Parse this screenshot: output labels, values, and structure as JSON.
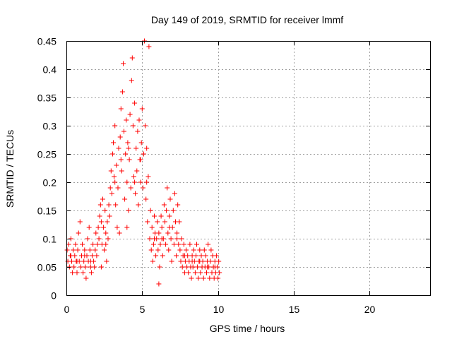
{
  "chart_data": {
    "type": "scatter",
    "title": "Day 149 of 2019, SRMTID for receiver lmmf",
    "xlabel": "GPS time / hours",
    "ylabel": "SRMTID / TECUs",
    "xlim": [
      0,
      24
    ],
    "ylim": [
      0,
      0.45
    ],
    "xticks": [
      0,
      5,
      10,
      15,
      20
    ],
    "xtick_labels": [
      "0",
      "5",
      "10",
      "15",
      "20"
    ],
    "yticks": [
      0,
      0.05,
      0.1,
      0.15,
      0.2,
      0.25,
      0.3,
      0.35,
      0.4,
      0.45
    ],
    "ytick_labels": [
      "0",
      "0.05",
      "0.1",
      "0.15",
      "0.2",
      "0.25",
      "0.3",
      "0.35",
      "0.4",
      "0.45"
    ],
    "grid": true,
    "marker": "plus",
    "color": "#ff0000",
    "series": [
      {
        "name": "SRMTID",
        "points": [
          [
            0.05,
            0.08
          ],
          [
            0.1,
            0.06
          ],
          [
            0.15,
            0.09
          ],
          [
            0.2,
            0.05
          ],
          [
            0.25,
            0.07
          ],
          [
            0.3,
            0.1
          ],
          [
            0.35,
            0.06
          ],
          [
            0.4,
            0.04
          ],
          [
            0.45,
            0.08
          ],
          [
            0.5,
            0.05
          ],
          [
            0.55,
            0.07
          ],
          [
            0.6,
            0.09
          ],
          [
            0.65,
            0.06
          ],
          [
            0.7,
            0.04
          ],
          [
            0.75,
            0.08
          ],
          [
            0.8,
            0.11
          ],
          [
            0.85,
            0.06
          ],
          [
            0.9,
            0.13
          ],
          [
            0.95,
            0.05
          ],
          [
            1.0,
            0.07
          ],
          [
            1.05,
            0.09
          ],
          [
            1.1,
            0.04
          ],
          [
            1.15,
            0.06
          ],
          [
            1.2,
            0.08
          ],
          [
            1.25,
            0.05
          ],
          [
            1.3,
            0.03
          ],
          [
            1.35,
            0.07
          ],
          [
            1.4,
            0.1
          ],
          [
            1.45,
            0.06
          ],
          [
            1.5,
            0.12
          ],
          [
            1.55,
            0.08
          ],
          [
            1.6,
            0.05
          ],
          [
            1.65,
            0.04
          ],
          [
            1.7,
            0.07
          ],
          [
            1.75,
            0.09
          ],
          [
            1.8,
            0.06
          ],
          [
            1.85,
            0.05
          ],
          [
            1.9,
            0.08
          ],
          [
            1.95,
            0.11
          ],
          [
            2.0,
            0.07
          ],
          [
            2.05,
            0.09
          ],
          [
            2.1,
            0.12
          ],
          [
            2.15,
            0.1
          ],
          [
            2.2,
            0.14
          ],
          [
            2.25,
            0.16
          ],
          [
            2.3,
            0.13
          ],
          [
            2.35,
            0.09
          ],
          [
            2.4,
            0.17
          ],
          [
            2.45,
            0.12
          ],
          [
            2.5,
            0.08
          ],
          [
            2.55,
            0.15
          ],
          [
            2.6,
            0.11
          ],
          [
            2.65,
            0.06
          ],
          [
            2.7,
            0.13
          ],
          [
            2.75,
            0.1
          ],
          [
            2.8,
            0.16
          ],
          [
            2.85,
            0.14
          ],
          [
            2.9,
            0.19
          ],
          [
            2.95,
            0.22
          ],
          [
            3.0,
            0.18
          ],
          [
            3.05,
            0.25
          ],
          [
            3.1,
            0.27
          ],
          [
            3.15,
            0.21
          ],
          [
            3.2,
            0.3
          ],
          [
            3.25,
            0.16
          ],
          [
            3.3,
            0.23
          ],
          [
            3.35,
            0.12
          ],
          [
            3.4,
            0.19
          ],
          [
            3.45,
            0.26
          ],
          [
            3.5,
            0.11
          ],
          [
            3.55,
            0.28
          ],
          [
            3.6,
            0.33
          ],
          [
            3.65,
            0.22
          ],
          [
            3.7,
            0.36
          ],
          [
            3.75,
            0.41
          ],
          [
            3.8,
            0.29
          ],
          [
            3.85,
            0.17
          ],
          [
            3.9,
            0.25
          ],
          [
            3.95,
            0.31
          ],
          [
            4.0,
            0.2
          ],
          [
            4.05,
            0.27
          ],
          [
            4.1,
            0.15
          ],
          [
            4.15,
            0.24
          ],
          [
            4.2,
            0.32
          ],
          [
            4.25,
            0.19
          ],
          [
            4.3,
            0.38
          ],
          [
            4.35,
            0.42
          ],
          [
            4.4,
            0.3
          ],
          [
            4.45,
            0.21
          ],
          [
            4.5,
            0.34
          ],
          [
            4.55,
            0.18
          ],
          [
            4.6,
            0.26
          ],
          [
            4.65,
            0.22
          ],
          [
            4.7,
            0.29
          ],
          [
            4.75,
            0.16
          ],
          [
            4.8,
            0.31
          ],
          [
            4.85,
            0.24
          ],
          [
            4.9,
            0.2
          ],
          [
            4.95,
            0.27
          ],
          [
            5.0,
            0.33
          ],
          [
            5.05,
            0.19
          ],
          [
            5.1,
            0.25
          ],
          [
            5.15,
            0.45
          ],
          [
            5.2,
            0.3
          ],
          [
            5.25,
            0.17
          ],
          [
            5.3,
            0.26
          ],
          [
            5.35,
            0.13
          ],
          [
            5.4,
            0.21
          ],
          [
            5.45,
            0.44
          ],
          [
            5.5,
            0.1
          ],
          [
            5.55,
            0.15
          ],
          [
            5.6,
            0.08
          ],
          [
            5.65,
            0.12
          ],
          [
            5.7,
            0.06
          ],
          [
            5.75,
            0.09
          ],
          [
            5.8,
            0.14
          ],
          [
            5.85,
            0.11
          ],
          [
            5.9,
            0.07
          ],
          [
            5.95,
            0.1
          ],
          [
            6.0,
            0.13
          ],
          [
            6.05,
            0.08
          ],
          [
            6.1,
            0.11
          ],
          [
            6.15,
            0.05
          ],
          [
            6.2,
            0.09
          ],
          [
            6.25,
            0.14
          ],
          [
            6.3,
            0.12
          ],
          [
            6.35,
            0.07
          ],
          [
            6.4,
            0.1
          ],
          [
            6.45,
            0.16
          ],
          [
            6.5,
            0.13
          ],
          [
            6.55,
            0.09
          ],
          [
            6.6,
            0.15
          ],
          [
            6.65,
            0.19
          ],
          [
            6.7,
            0.11
          ],
          [
            6.75,
            0.08
          ],
          [
            6.8,
            0.14
          ],
          [
            6.85,
            0.17
          ],
          [
            6.9,
            0.1
          ],
          [
            6.95,
            0.06
          ],
          [
            7.0,
            0.12
          ],
          [
            7.05,
            0.15
          ],
          [
            7.1,
            0.09
          ],
          [
            7.15,
            0.18
          ],
          [
            7.2,
            0.13
          ],
          [
            7.25,
            0.07
          ],
          [
            7.3,
            0.11
          ],
          [
            7.35,
            0.16
          ],
          [
            7.4,
            0.09
          ],
          [
            7.45,
            0.13
          ],
          [
            7.5,
            0.08
          ],
          [
            7.55,
            0.06
          ],
          [
            7.6,
            0.1
          ],
          [
            7.65,
            0.05
          ],
          [
            7.7,
            0.07
          ],
          [
            7.75,
            0.09
          ],
          [
            7.8,
            0.04
          ],
          [
            7.85,
            0.06
          ],
          [
            7.9,
            0.08
          ],
          [
            7.95,
            0.05
          ],
          [
            8.0,
            0.07
          ],
          [
            8.05,
            0.04
          ],
          [
            8.1,
            0.06
          ],
          [
            8.15,
            0.09
          ],
          [
            8.2,
            0.05
          ],
          [
            8.25,
            0.03
          ],
          [
            8.3,
            0.07
          ],
          [
            8.35,
            0.05
          ],
          [
            8.4,
            0.08
          ],
          [
            8.45,
            0.06
          ],
          [
            8.5,
            0.04
          ],
          [
            8.55,
            0.07
          ],
          [
            8.6,
            0.09
          ],
          [
            8.65,
            0.05
          ],
          [
            8.7,
            0.03
          ],
          [
            8.75,
            0.06
          ],
          [
            8.8,
            0.08
          ],
          [
            8.85,
            0.04
          ],
          [
            8.9,
            0.07
          ],
          [
            8.95,
            0.05
          ],
          [
            9.0,
            0.06
          ],
          [
            9.05,
            0.03
          ],
          [
            9.1,
            0.08
          ],
          [
            9.15,
            0.05
          ],
          [
            9.2,
            0.07
          ],
          [
            9.25,
            0.04
          ],
          [
            9.3,
            0.06
          ],
          [
            9.35,
            0.09
          ],
          [
            9.4,
            0.05
          ],
          [
            9.45,
            0.03
          ],
          [
            9.5,
            0.06
          ],
          [
            9.55,
            0.08
          ],
          [
            9.6,
            0.04
          ],
          [
            9.65,
            0.07
          ],
          [
            9.7,
            0.05
          ],
          [
            9.75,
            0.03
          ],
          [
            9.8,
            0.06
          ],
          [
            9.85,
            0.04
          ],
          [
            9.9,
            0.07
          ],
          [
            9.95,
            0.05
          ],
          [
            10.0,
            0.03
          ],
          [
            10.05,
            0.06
          ],
          [
            10.1,
            0.04
          ],
          [
            0.3,
            0.07
          ],
          [
            0.7,
            0.06
          ],
          [
            1.2,
            0.07
          ],
          [
            1.6,
            0.06
          ],
          [
            2.6,
            0.09
          ],
          [
            3.2,
            0.2
          ],
          [
            3.6,
            0.24
          ],
          [
            4.1,
            0.26
          ],
          [
            4.5,
            0.2
          ],
          [
            4.9,
            0.24
          ],
          [
            5.3,
            0.2
          ],
          [
            5.8,
            0.1
          ],
          [
            6.3,
            0.1
          ],
          [
            6.8,
            0.12
          ],
          [
            7.3,
            0.1
          ],
          [
            7.8,
            0.07
          ],
          [
            8.3,
            0.06
          ],
          [
            8.8,
            0.06
          ],
          [
            9.3,
            0.05
          ],
          [
            9.8,
            0.05
          ],
          [
            2.3,
            0.05
          ],
          [
            4.0,
            0.12
          ],
          [
            6.1,
            0.02
          ]
        ]
      }
    ]
  }
}
